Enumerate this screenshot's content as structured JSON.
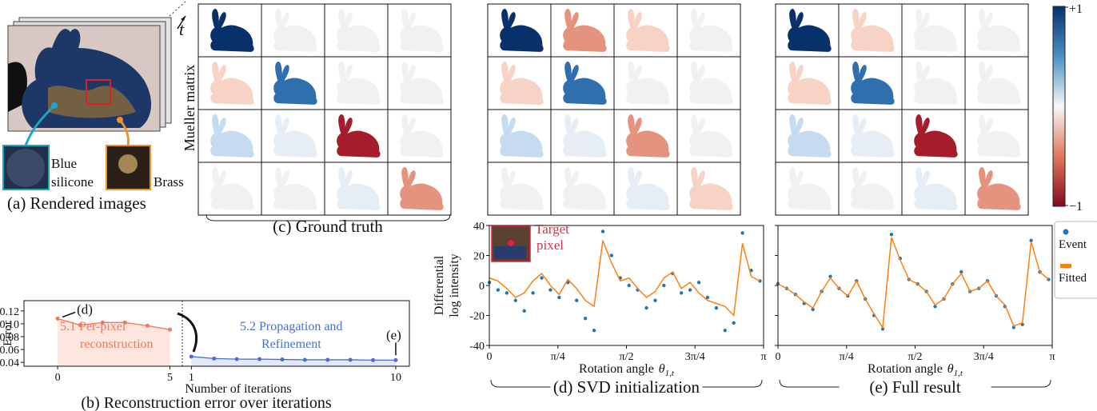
{
  "figure": {
    "panel_a": {
      "time_symbol": "t",
      "material_1_lines": [
        "Blue",
        "silicone"
      ],
      "material_2": "Brass",
      "caption": "(a) Rendered images"
    },
    "mueller": {
      "row_label": "Mueller matrix",
      "caption": "(c) Ground truth",
      "colorbar_max": "+1",
      "colorbar_min": "−1"
    }
  },
  "chart_data": [
    {
      "type": "line",
      "caption": "(b) Reconstruction error over iterations",
      "xlabel": "Number of iterations",
      "ylabel": "Error",
      "ylim": [
        0.034,
        0.136
      ],
      "yticks": [
        0.04,
        0.06,
        0.08,
        {
          "value": 0.1,
          "label": "0.10"
        },
        0.12
      ],
      "annotations": [
        {
          "text": "(d)"
        },
        {
          "text": "(e)"
        }
      ],
      "series": [
        {
          "label_lines": [
            "5.1 Per-pixel",
            "reconstruction"
          ],
          "color": "#f0795a",
          "fill": "#fde6df",
          "x": [
            0,
            1,
            2,
            3,
            4,
            5
          ],
          "values": [
            0.108,
            0.098,
            0.102,
            0.102,
            0.097,
            0.091
          ],
          "xlim": [
            -1.5,
            5.55
          ],
          "xticks": [
            0,
            5
          ]
        },
        {
          "label_lines": [
            "5.2 Propagation and",
            "Refinement"
          ],
          "color": "#4a6fd0",
          "fill": "#e1e8f8",
          "x": [
            1,
            2,
            3,
            4,
            5,
            6,
            7,
            8,
            9,
            10
          ],
          "values": [
            0.049,
            0.046,
            0.045,
            0.045,
            0.0445,
            0.044,
            0.044,
            0.044,
            0.0435,
            0.0435
          ],
          "xlim": [
            0.6,
            10.6
          ],
          "xticks": [
            1,
            10
          ]
        }
      ]
    },
    {
      "type": "scatter",
      "caption": "(d) SVD initialization",
      "xlabel": "Rotation angle",
      "xlabel_symbol": "θ",
      "xlabel_sub": "1,t",
      "ylabel_lines": [
        "Differential",
        "log intensity"
      ],
      "annotation_lines": [
        "Target",
        "pixel"
      ],
      "xlim": [
        0,
        3.1416
      ],
      "ylim": [
        -40,
        40
      ],
      "xticks": [
        0,
        {
          "value": 0.7854,
          "label": "π/4"
        },
        {
          "value": 1.5708,
          "label": "π/2"
        },
        {
          "value": 2.3562,
          "label": "3π/4"
        },
        {
          "value": 3.1416,
          "label": "π"
        }
      ],
      "yticks": [
        -40,
        -20,
        0,
        20,
        40
      ],
      "x": [
        0,
        0.1,
        0.2,
        0.3,
        0.4,
        0.5,
        0.6,
        0.7,
        0.8,
        0.9,
        1.0,
        1.1,
        1.2,
        1.3,
        1.4,
        1.5,
        1.6,
        1.7,
        1.8,
        1.9,
        2.0,
        2.1,
        2.2,
        2.3,
        2.4,
        2.5,
        2.6,
        2.7,
        2.8,
        2.9,
        3.0,
        3.1
      ],
      "series": [
        {
          "style": "marker",
          "color": "#1f77b4",
          "values": [
            2,
            -3,
            -5,
            -10,
            -17,
            -5,
            5,
            -3,
            -8,
            2,
            -10,
            -22,
            -30,
            36,
            20,
            5,
            0,
            -3,
            -15,
            -10,
            0,
            8,
            -5,
            -3,
            2,
            -8,
            -15,
            -30,
            -25,
            35,
            10,
            3
          ]
        },
        {
          "style": "line",
          "color": "#ff7f0e",
          "values": [
            5,
            3,
            -2,
            -8,
            -5,
            3,
            8,
            0,
            -6,
            4,
            -2,
            -10,
            -14,
            30,
            15,
            3,
            5,
            -2,
            -8,
            -4,
            5,
            9,
            -2,
            2,
            -5,
            -10,
            -12,
            -14,
            -20,
            28,
            6,
            3
          ]
        }
      ]
    },
    {
      "type": "scatter",
      "caption": "(e) Full result",
      "xlabel": "Rotation angle",
      "xlabel_symbol": "θ",
      "xlabel_sub": "1,t",
      "xlim": [
        0,
        3.1416
      ],
      "ylim": [
        -40,
        40
      ],
      "ytick_labels": false,
      "legend": "right",
      "xticks": [
        0,
        {
          "value": 0.7854,
          "label": "π/4"
        },
        {
          "value": 1.5708,
          "label": "π/2"
        },
        {
          "value": 2.3562,
          "label": "3π/4"
        },
        {
          "value": 3.1416,
          "label": "π"
        }
      ],
      "yticks": [
        -40,
        -20,
        0,
        20,
        40
      ],
      "x": [
        0,
        0.1,
        0.2,
        0.3,
        0.4,
        0.5,
        0.6,
        0.7,
        0.8,
        0.9,
        1.0,
        1.1,
        1.2,
        1.3,
        1.4,
        1.5,
        1.6,
        1.7,
        1.8,
        1.9,
        2.0,
        2.1,
        2.2,
        2.3,
        2.4,
        2.5,
        2.6,
        2.7,
        2.8,
        2.9,
        3.0,
        3.1
      ],
      "series": [
        {
          "name": "Event",
          "style": "marker",
          "color": "#1f77b4",
          "values": [
            1,
            -2,
            -6,
            -12,
            -16,
            -4,
            6,
            -2,
            -7,
            3,
            -9,
            -20,
            -29,
            34,
            18,
            4,
            1,
            -4,
            -14,
            -9,
            1,
            9,
            -4,
            -2,
            3,
            -7,
            -14,
            -28,
            -26,
            30,
            9,
            4
          ]
        },
        {
          "name": "Fitted",
          "style": "line",
          "color": "#ff7f0e",
          "values": [
            1,
            -2,
            -6,
            -11,
            -15,
            -4,
            5,
            -2,
            -7,
            3,
            -9,
            -19,
            -28,
            32,
            17,
            4,
            1,
            -4,
            -13,
            -9,
            1,
            8,
            -4,
            -2,
            3,
            -7,
            -13,
            -27,
            -25,
            29,
            9,
            4
          ]
        }
      ]
    }
  ]
}
